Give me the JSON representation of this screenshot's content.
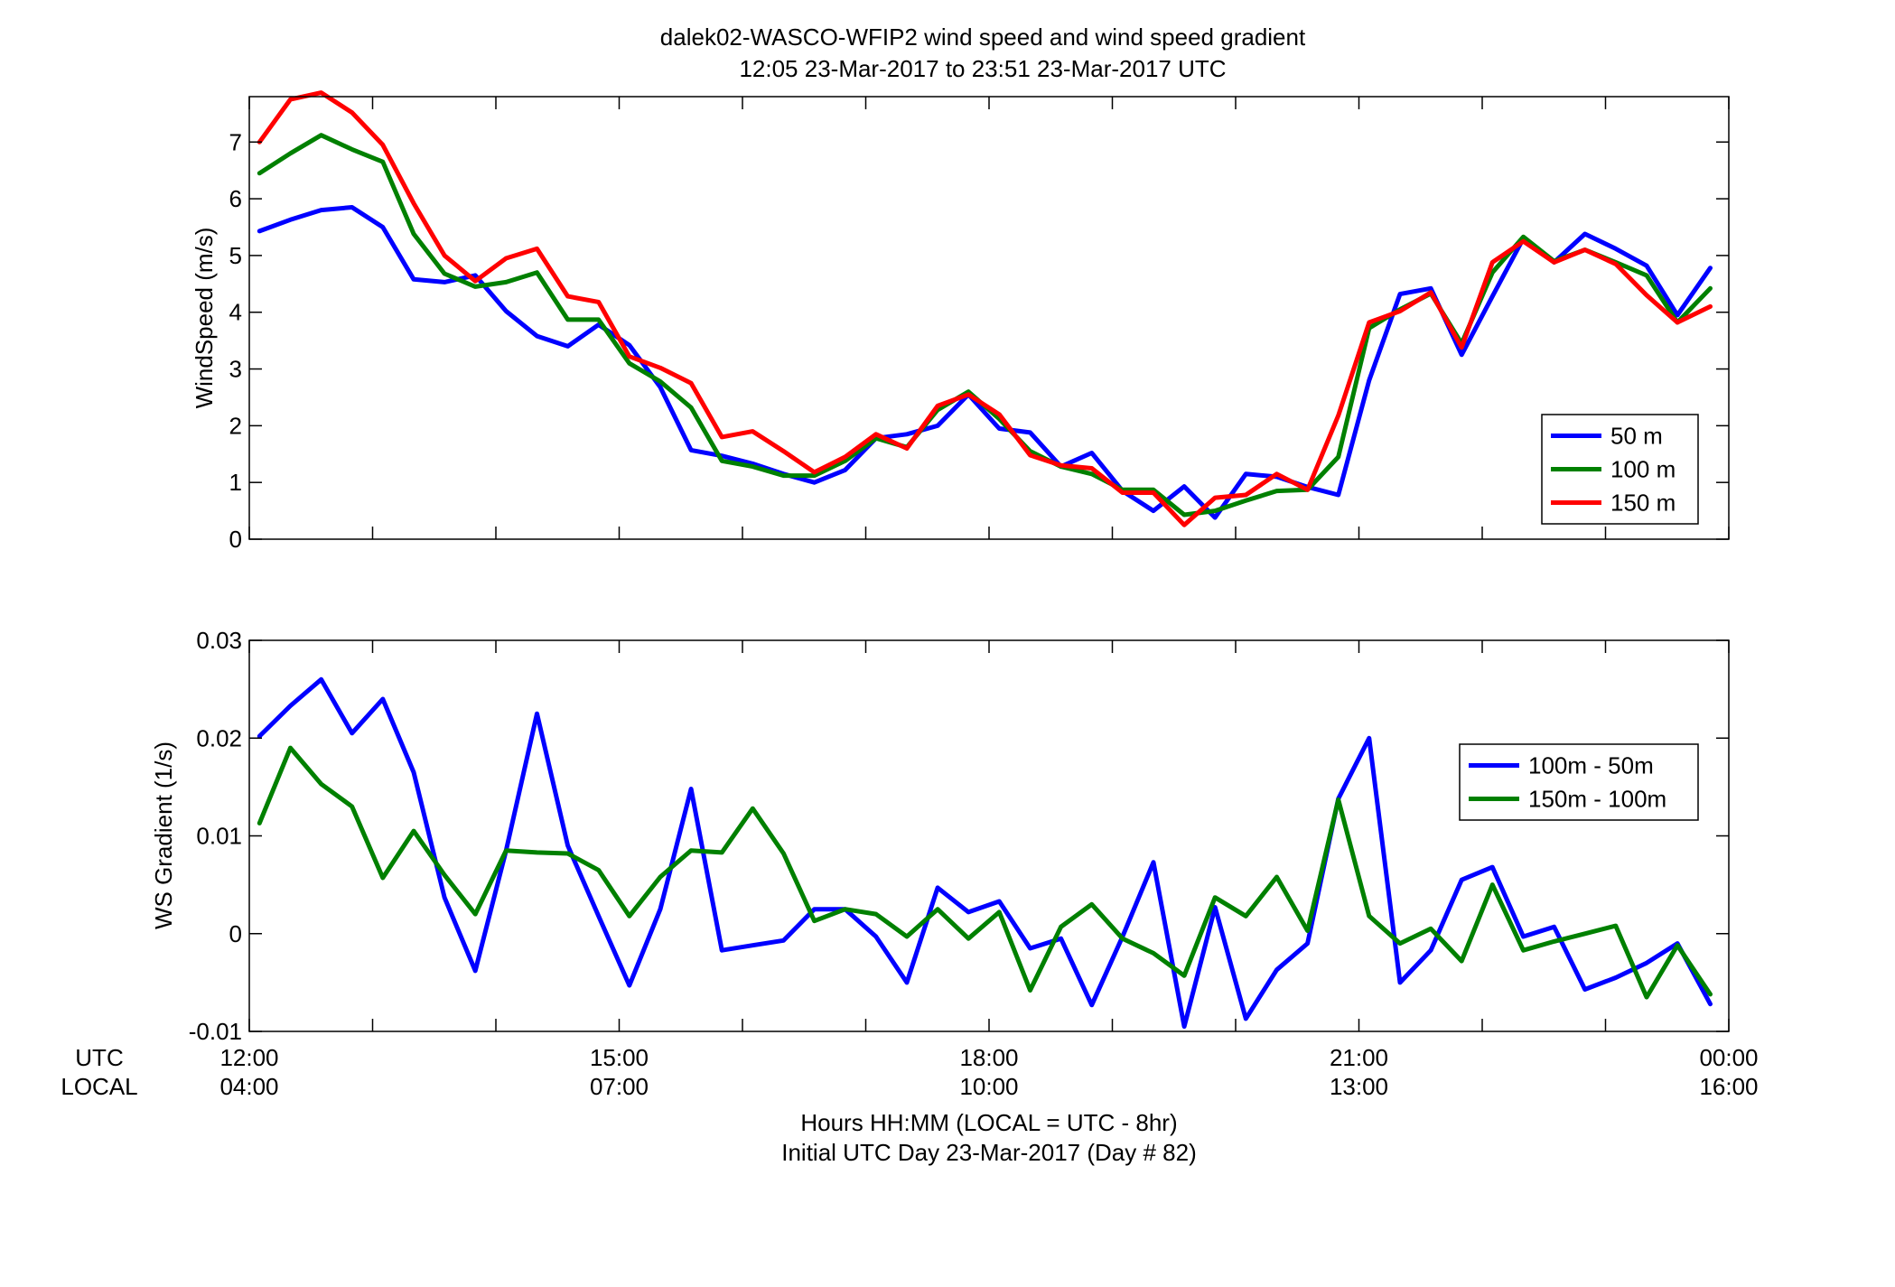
{
  "figure": {
    "title_line1": "dalek02-WASCO-WFIP2  wind speed and wind speed gradient",
    "title_line2": "12:05 23-Mar-2017 to 23:51 23-Mar-2017  UTC",
    "xlabel_line1": "Hours HH:MM  (LOCAL = UTC - 8hr)",
    "xlabel_line2": "Initial UTC Day 23-Mar-2017 (Day # 82)",
    "utc_label": "UTC",
    "local_label": "LOCAL",
    "utc_ticks": [
      "12:00",
      "15:00",
      "18:00",
      "21:00",
      "00:00"
    ],
    "local_ticks": [
      "04:00",
      "07:00",
      "10:00",
      "13:00",
      "16:00"
    ]
  },
  "chart_data": [
    {
      "type": "line",
      "ylabel": "WindSpeed (m/s)",
      "xlim": [
        12,
        24
      ],
      "ylim": [
        0,
        7.8
      ],
      "yticks": [
        "0",
        "1",
        "2",
        "3",
        "4",
        "5",
        "6",
        "7"
      ],
      "legend_position": "right",
      "grid": false,
      "x": [
        12.083,
        12.333,
        12.583,
        12.833,
        13.083,
        13.333,
        13.583,
        13.833,
        14.083,
        14.333,
        14.583,
        14.833,
        15.083,
        15.333,
        15.583,
        15.833,
        16.083,
        16.333,
        16.583,
        16.833,
        17.083,
        17.333,
        17.583,
        17.833,
        18.083,
        18.333,
        18.583,
        18.833,
        19.083,
        19.333,
        19.583,
        19.833,
        20.083,
        20.333,
        20.583,
        20.833,
        21.083,
        21.333,
        21.583,
        21.833,
        22.083,
        22.333,
        22.583,
        22.833,
        23.083,
        23.333,
        23.583,
        23.85
      ],
      "series": [
        {
          "name": "50 m",
          "color": "#0000ff",
          "values": [
            5.43,
            5.63,
            5.8,
            5.85,
            5.5,
            4.58,
            4.53,
            4.65,
            4.02,
            3.58,
            3.4,
            3.78,
            3.42,
            2.68,
            1.57,
            1.47,
            1.33,
            1.15,
            1.0,
            1.22,
            1.78,
            1.85,
            2.0,
            2.55,
            1.95,
            1.88,
            1.28,
            1.52,
            0.85,
            0.5,
            0.93,
            0.38,
            1.15,
            1.1,
            0.92,
            0.78,
            2.8,
            4.32,
            4.42,
            3.25,
            4.28,
            5.3,
            4.88,
            5.38,
            5.12,
            4.82,
            3.95,
            4.78
          ]
        },
        {
          "name": "100 m",
          "color": "#008000",
          "values": [
            6.45,
            6.8,
            7.12,
            6.87,
            6.65,
            5.38,
            4.68,
            4.45,
            4.53,
            4.7,
            3.87,
            3.87,
            3.1,
            2.78,
            2.32,
            1.38,
            1.28,
            1.12,
            1.12,
            1.38,
            1.78,
            1.62,
            2.28,
            2.6,
            2.12,
            1.55,
            1.28,
            1.15,
            0.87,
            0.87,
            0.43,
            0.5,
            0.68,
            0.85,
            0.87,
            1.45,
            3.72,
            4.05,
            4.33,
            3.45,
            4.7,
            5.33,
            4.9,
            5.1,
            4.88,
            4.65,
            3.82,
            4.42
          ]
        },
        {
          "name": "150 m",
          "color": "#ff0000",
          "values": [
            7.0,
            7.75,
            7.87,
            7.52,
            6.95,
            5.92,
            5.0,
            4.55,
            4.95,
            5.12,
            4.28,
            4.18,
            3.22,
            3.02,
            2.75,
            1.8,
            1.9,
            1.55,
            1.18,
            1.45,
            1.85,
            1.6,
            2.35,
            2.55,
            2.2,
            1.48,
            1.3,
            1.25,
            0.82,
            0.82,
            0.25,
            0.73,
            0.78,
            1.15,
            0.87,
            2.18,
            3.82,
            4.02,
            4.35,
            3.38,
            4.88,
            5.25,
            4.88,
            5.1,
            4.85,
            4.3,
            3.82,
            4.1
          ]
        }
      ]
    },
    {
      "type": "line",
      "ylabel": "WS Gradient (1/s)",
      "xlim": [
        12,
        24
      ],
      "ylim": [
        -0.01,
        0.03
      ],
      "yticks": [
        "-0.01",
        "0",
        "0.01",
        "0.02",
        "0.03"
      ],
      "legend_position": "right",
      "grid": false,
      "x": [
        12.083,
        12.333,
        12.583,
        12.833,
        13.083,
        13.333,
        13.583,
        13.833,
        14.083,
        14.333,
        14.583,
        14.833,
        15.083,
        15.333,
        15.583,
        15.833,
        16.083,
        16.333,
        16.583,
        16.833,
        17.083,
        17.333,
        17.583,
        17.833,
        18.083,
        18.333,
        18.583,
        18.833,
        19.083,
        19.333,
        19.583,
        19.833,
        20.083,
        20.333,
        20.583,
        20.833,
        21.083,
        21.333,
        21.583,
        21.833,
        22.083,
        22.333,
        22.583,
        22.833,
        23.083,
        23.333,
        23.583,
        23.85
      ],
      "series": [
        {
          "name": "100m - 50m",
          "color": "#0000ff",
          "values": [
            0.0202,
            0.0233,
            0.026,
            0.0205,
            0.024,
            0.0165,
            0.0037,
            -0.0038,
            0.0085,
            0.0225,
            0.009,
            0.0018,
            -0.0053,
            0.0025,
            0.0148,
            -0.0017,
            -0.0012,
            -0.0007,
            0.0025,
            0.0025,
            -0.0003,
            -0.005,
            0.0047,
            0.0022,
            0.0033,
            -0.0015,
            -0.0005,
            -0.0073,
            -0.0003,
            0.0073,
            -0.0095,
            0.0027,
            -0.0087,
            -0.0037,
            -0.001,
            0.0138,
            0.02,
            -0.005,
            -0.0017,
            0.0055,
            0.0068,
            -0.0003,
            0.0007,
            -0.0057,
            -0.0045,
            -0.003,
            -0.001,
            -0.0072
          ]
        },
        {
          "name": "150m - 100m",
          "color": "#008000",
          "values": [
            0.0113,
            0.019,
            0.0153,
            0.013,
            0.0057,
            0.0105,
            0.006,
            0.002,
            0.0085,
            0.0083,
            0.0082,
            0.0065,
            0.0018,
            0.0058,
            0.0085,
            0.0083,
            0.0128,
            0.0082,
            0.0013,
            0.0025,
            0.002,
            -0.0003,
            0.0025,
            -0.0005,
            0.0022,
            -0.0058,
            0.0007,
            0.003,
            -0.0005,
            -0.002,
            -0.0043,
            0.0037,
            0.0018,
            0.0058,
            0.0003,
            0.0137,
            0.0018,
            -0.001,
            0.0005,
            -0.0028,
            0.005,
            -0.0017,
            -0.0008,
            0.0,
            0.0008,
            -0.0065,
            -0.0012,
            -0.0062
          ]
        }
      ]
    }
  ]
}
